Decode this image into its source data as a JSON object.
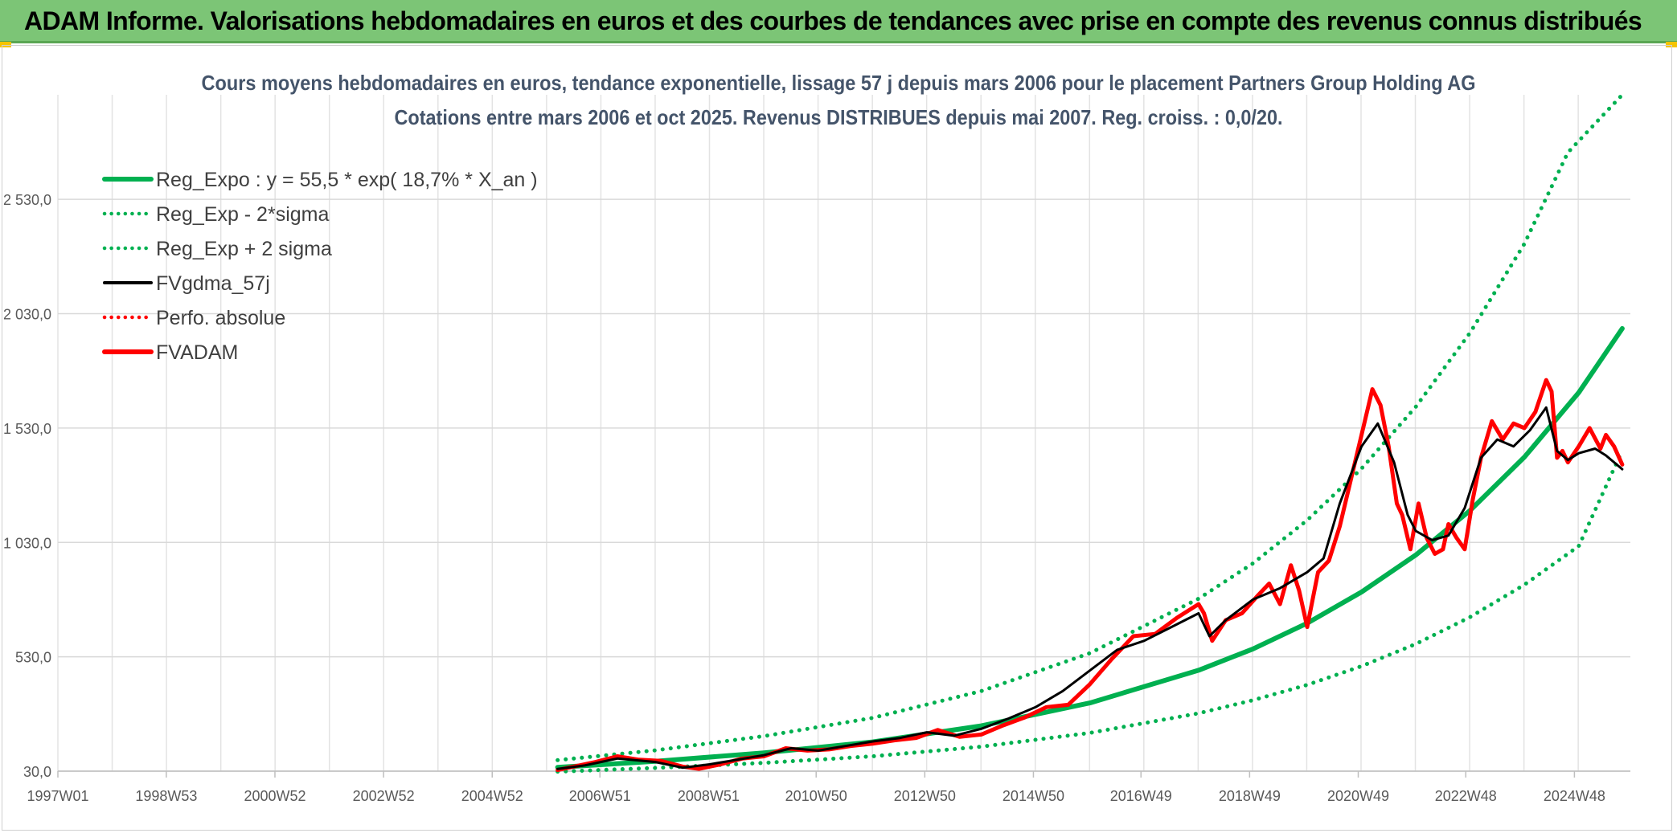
{
  "banner": {
    "title": "ADAM Informe. Valorisations hebdomadaires en euros et des courbes de tendances avec prise en compte des revenus connus distribués",
    "accent": "#7cc576"
  },
  "chart_data": {
    "type": "line",
    "title": "Cours moyens hebdomadaires en euros, tendance exponentielle, lissage 57 j depuis mars 2006 pour le placement Partners Group Holding AG",
    "subtitle": "Cotations entre mars 2006 et oct 2025. Revenus DISTRIBUES depuis mai 2007. Reg. croiss. : 0,0/20.",
    "xlabel": "",
    "ylabel": "",
    "xlim": [
      1997.0,
      2025.95
    ],
    "ylim": [
      30,
      2987
    ],
    "grid": true,
    "legend_position": "top-left",
    "x_ticks": [
      {
        "label": "1997W01",
        "x": 1997.0
      },
      {
        "label": "1998W53",
        "x": 1998.996
      },
      {
        "label": "2000W52",
        "x": 2000.996
      },
      {
        "label": "2002W52",
        "x": 2002.996
      },
      {
        "label": "2004W52",
        "x": 2004.996
      },
      {
        "label": "2006W51",
        "x": 2006.979
      },
      {
        "label": "2008W51",
        "x": 2008.979
      },
      {
        "label": "2010W50",
        "x": 2010.96
      },
      {
        "label": "2012W50",
        "x": 2012.96
      },
      {
        "label": "2014W50",
        "x": 2014.96
      },
      {
        "label": "2016W49",
        "x": 2016.94
      },
      {
        "label": "2018W49",
        "x": 2018.94
      },
      {
        "label": "2020W49",
        "x": 2020.94
      },
      {
        "label": "2022W48",
        "x": 2022.92
      },
      {
        "label": "2024W48",
        "x": 2024.92
      }
    ],
    "y_ticks": [
      {
        "label": "30,0",
        "y": 30
      },
      {
        "label": "530,0",
        "y": 530
      },
      {
        "label": "1 030,0",
        "y": 1030
      },
      {
        "label": "1 530,0",
        "y": 1530
      },
      {
        "label": "2 030,0",
        "y": 2030
      },
      {
        "label": "2 530,0",
        "y": 2530
      }
    ],
    "series": [
      {
        "name": "Reg_Expo : y = 55,5 * exp( 18,7% *  X_an )",
        "style": "solid",
        "color": "#00b050",
        "x": [
          2006.2,
          2008,
          2010,
          2012,
          2014,
          2016,
          2018,
          2019,
          2020,
          2021,
          2022,
          2023,
          2024,
          2025,
          2025.8
        ],
        "y": [
          47,
          73,
          110,
          158,
          228,
          328,
          471,
          564,
          677,
          813,
          975,
          1170,
          1403,
          1685,
          1965
        ]
      },
      {
        "name": "Reg_Exp - 2*sigma",
        "style": "dotted",
        "color": "#00b050",
        "x": [
          2006.2,
          2008,
          2010,
          2012,
          2014,
          2016,
          2018,
          2019,
          2020,
          2021,
          2022,
          2023,
          2024,
          2025,
          2025.8
        ],
        "y": [
          28,
          44,
          66,
          95,
          137,
          197,
          283,
          340,
          407,
          489,
          586,
          704,
          845,
          1014,
          1432
        ]
      },
      {
        "name": "Reg_Exp + 2 sigma",
        "style": "dotted",
        "color": "#00b050",
        "x": [
          2006.2,
          2008,
          2010,
          2012,
          2014,
          2016,
          2018,
          2019,
          2020,
          2021,
          2022,
          2023,
          2024,
          2024.8,
          2025.8
        ],
        "y": [
          78,
          121,
          183,
          263,
          380,
          546,
          784,
          938,
          1127,
          1353,
          1623,
          1947,
          2336,
          2735,
          2987
        ]
      },
      {
        "name": "FVgdma_57j",
        "style": "solid",
        "color": "#000000",
        "x": [
          2006.2,
          2006.7,
          2007.3,
          2008,
          2008.5,
          2009,
          2009.5,
          2010,
          2010.5,
          2011,
          2011.5,
          2012,
          2012.5,
          2013,
          2013.5,
          2014,
          2014.5,
          2015,
          2015.5,
          2016,
          2016.5,
          2017,
          2017.5,
          2018,
          2018.2,
          2018.5,
          2019,
          2019.5,
          2020,
          2020.3,
          2020.6,
          2021,
          2021.3,
          2021.6,
          2021.85,
          2022,
          2022.3,
          2022.6,
          2022.9,
          2023.2,
          2023.5,
          2023.8,
          2024.1,
          2024.4,
          2024.6,
          2024.8,
          2025,
          2025.3,
          2025.5,
          2025.8
        ],
        "y": [
          40,
          55,
          85,
          70,
          45,
          60,
          80,
          100,
          130,
          120,
          140,
          160,
          175,
          200,
          185,
          215,
          260,
          310,
          380,
          470,
          560,
          600,
          660,
          720,
          620,
          690,
          780,
          830,
          900,
          960,
          1200,
          1450,
          1550,
          1380,
          1150,
          1080,
          1040,
          1060,
          1180,
          1400,
          1480,
          1450,
          1520,
          1620,
          1430,
          1390,
          1420,
          1440,
          1410,
          1350
        ]
      },
      {
        "name": "Perfo. absolue",
        "style": "dotted",
        "color": "#ff0000",
        "x": [],
        "y": []
      },
      {
        "name": "FVADAM",
        "style": "solid",
        "color": "#ff0000",
        "x": [
          2006.2,
          2006.5,
          2006.9,
          2007.3,
          2007.7,
          2008.1,
          2008.5,
          2008.8,
          2009.2,
          2009.6,
          2010,
          2010.4,
          2010.8,
          2011.2,
          2011.6,
          2012,
          2012.4,
          2012.8,
          2013.2,
          2013.6,
          2014,
          2014.4,
          2014.8,
          2015.2,
          2015.6,
          2016,
          2016.4,
          2016.8,
          2017.2,
          2017.6,
          2018,
          2018.1,
          2018.25,
          2018.5,
          2018.8,
          2019.1,
          2019.3,
          2019.5,
          2019.7,
          2019.85,
          2020.0,
          2020.2,
          2020.4,
          2020.6,
          2020.8,
          2021.0,
          2021.2,
          2021.35,
          2021.5,
          2021.65,
          2021.75,
          2021.9,
          2022.05,
          2022.2,
          2022.35,
          2022.5,
          2022.6,
          2022.75,
          2022.9,
          2023.05,
          2023.2,
          2023.4,
          2023.6,
          2023.8,
          2024.0,
          2024.2,
          2024.4,
          2024.5,
          2024.6,
          2024.7,
          2024.8,
          2025.0,
          2025.2,
          2025.4,
          2025.5,
          2025.65,
          2025.8
        ],
        "y": [
          35,
          50,
          70,
          95,
          80,
          75,
          50,
          40,
          60,
          85,
          95,
          130,
          120,
          125,
          140,
          150,
          165,
          175,
          210,
          180,
          190,
          230,
          265,
          310,
          320,
          410,
          520,
          620,
          630,
          700,
          760,
          720,
          600,
          690,
          720,
          800,
          850,
          760,
          930,
          820,
          660,
          900,
          950,
          1100,
          1300,
          1500,
          1700,
          1630,
          1450,
          1200,
          1150,
          1000,
          1200,
          1050,
          980,
          1000,
          1110,
          1050,
          1000,
          1220,
          1400,
          1560,
          1480,
          1550,
          1530,
          1600,
          1740,
          1690,
          1400,
          1430,
          1380,
          1450,
          1530,
          1440,
          1500,
          1450,
          1370
        ]
      }
    ]
  }
}
